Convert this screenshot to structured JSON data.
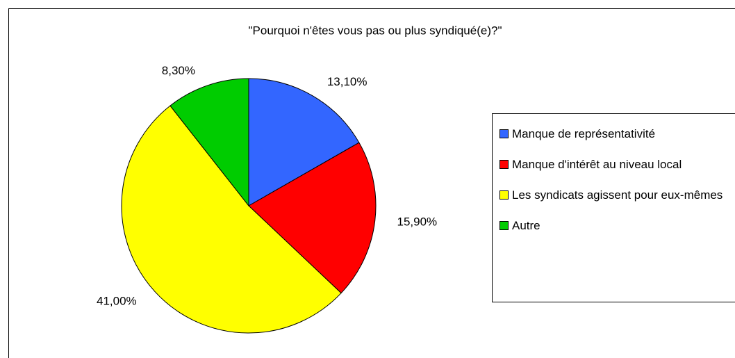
{
  "chart_data": {
    "type": "pie",
    "title": "\"Pourquoi n'êtes vous pas ou plus syndiqué(e)?\"",
    "categories": [
      "Manque de représentativité",
      "Manque d'intérêt au niveau local",
      "Les syndicats agissent pour eux-mêmes",
      "Autre"
    ],
    "values": [
      13.1,
      15.9,
      41.0,
      8.3
    ],
    "value_labels": [
      "13,10%",
      "15,90%",
      "41,00%",
      "8,30%"
    ],
    "colors": [
      "#3366ff",
      "#ff0000",
      "#ffff00",
      "#00cc00"
    ],
    "legend": "right"
  }
}
